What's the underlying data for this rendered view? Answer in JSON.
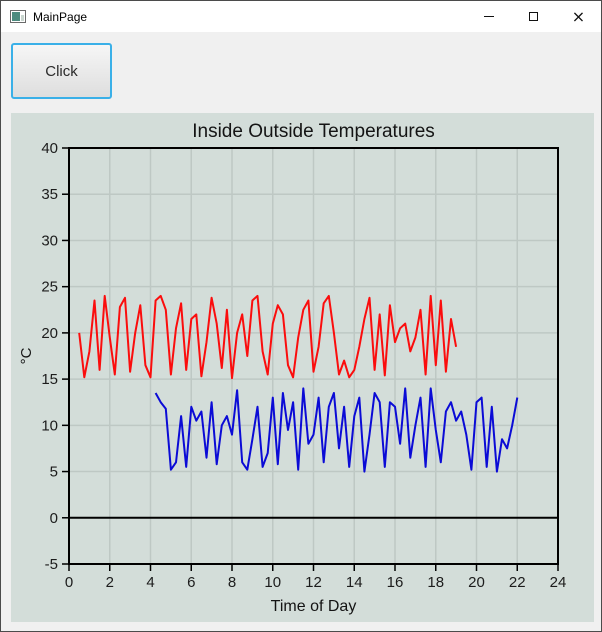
{
  "window": {
    "title": "MainPage",
    "controls": {
      "minimize_label": "minimize",
      "maximize_label": "maximize",
      "close_label": "close",
      "close_glyph": "×"
    }
  },
  "button": {
    "label": "Click"
  },
  "colors": {
    "titlebar_bg": "#ffffff",
    "content_bg": "#f0f0f0",
    "chart_bg": "#d3ddd9",
    "button_focus_border": "#3ab0e8",
    "grid_line": "#bec8c4",
    "axis_line": "#000000",
    "red_series": "#fb0d0d",
    "blue_series": "#0b0bd6"
  },
  "chart_data": {
    "type": "line",
    "title": "Inside Outside Temperatures",
    "xlabel": "Time of Day",
    "ylabel": "°C",
    "xlim": [
      0,
      24
    ],
    "ylim": [
      -5,
      40
    ],
    "x_ticks": [
      0,
      2,
      4,
      6,
      8,
      10,
      12,
      14,
      16,
      18,
      20,
      22,
      24
    ],
    "y_ticks": [
      -5,
      0,
      5,
      10,
      15,
      20,
      25,
      30,
      35,
      40
    ],
    "grid": true,
    "zero_line": true,
    "legend_position": "none",
    "series": [
      {
        "name": "inside (red)",
        "color": "#fb0d0d",
        "x_start": 0.5,
        "x_step": 0.25,
        "values": [
          20,
          15.2,
          18,
          23.5,
          16,
          24,
          19.5,
          15.5,
          22.8,
          23.8,
          15.8,
          20,
          23,
          16.5,
          15.2,
          23.5,
          24,
          22.5,
          15.5,
          20.5,
          23.2,
          16,
          21.5,
          22,
          15.3,
          19,
          23.8,
          21,
          16.2,
          22.5,
          15.1,
          20,
          22,
          17.5,
          23.5,
          24,
          18,
          15.5,
          21,
          23,
          22,
          16.5,
          15.2,
          19.5,
          22.5,
          23.5,
          15.8,
          18.5,
          23.2,
          24,
          20,
          15.5,
          17,
          15.2,
          16,
          18.5,
          21.5,
          23.8,
          16,
          22,
          15.4,
          23,
          19,
          20.5,
          21,
          18,
          19.5,
          22.5,
          15.5,
          24,
          16.5,
          23.5,
          15.8,
          21.5,
          18.5
        ]
      },
      {
        "name": "outside (blue)",
        "color": "#0b0bd6",
        "x_start": 4.25,
        "x_step": 0.25,
        "values": [
          13.5,
          12.5,
          11.8,
          5.2,
          6,
          11,
          5.5,
          12,
          10.5,
          11.5,
          6.5,
          12.5,
          5.8,
          10,
          11,
          9,
          13.8,
          6,
          5.2,
          8.5,
          12,
          5.5,
          7,
          13,
          5.8,
          13.5,
          9.5,
          12.5,
          5.2,
          14,
          8,
          9,
          13,
          6,
          12,
          13.5,
          7.5,
          12,
          5.5,
          11,
          13,
          5,
          9,
          13.5,
          12.5,
          5.5,
          12.5,
          12,
          8,
          14,
          6.5,
          10,
          13,
          5.5,
          14,
          9.5,
          6,
          11.5,
          12.5,
          10.5,
          11.5,
          9,
          5.2,
          12.5,
          13,
          5.5,
          12,
          5,
          8.5,
          7.5,
          10,
          13
        ]
      }
    ]
  }
}
